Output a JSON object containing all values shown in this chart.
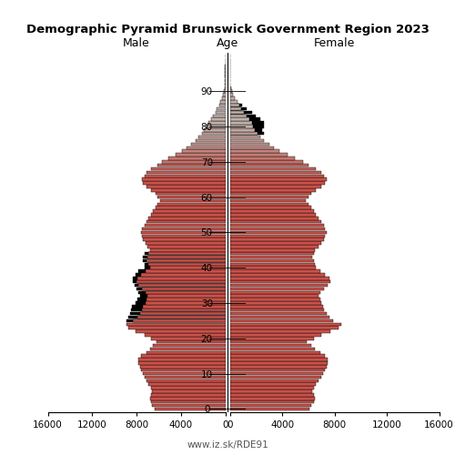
{
  "title": "Demographic Pyramid Brunswick Government Region 2023",
  "label_male": "Male",
  "label_female": "Female",
  "label_age": "Age",
  "footer": "www.iz.sk/RDE91",
  "xlim": 16000,
  "xticks": [
    0,
    4000,
    8000,
    12000,
    16000
  ],
  "ytick_positions": [
    0,
    10,
    20,
    30,
    40,
    50,
    60,
    70,
    80,
    90
  ],
  "bar_height": 0.9,
  "bar_lw": 0.3,
  "color_young": "#c8524a",
  "color_old": "#c0b0aa",
  "color_edge": "#000000",
  "transition_start": 65,
  "transition_end": 80,
  "male": [
    6400,
    6600,
    6700,
    6800,
    6700,
    6600,
    6700,
    6900,
    7100,
    7300,
    7400,
    7600,
    7700,
    7800,
    7800,
    7600,
    7100,
    6800,
    6500,
    6200,
    6700,
    7300,
    8100,
    8700,
    8900,
    8300,
    7900,
    7700,
    7500,
    7400,
    7200,
    7100,
    7000,
    7200,
    7500,
    7800,
    8000,
    7900,
    7600,
    7200,
    6800,
    6900,
    7100,
    7000,
    6900,
    6800,
    7000,
    7200,
    7400,
    7500,
    7600,
    7500,
    7300,
    7100,
    6900,
    6700,
    6500,
    6300,
    6100,
    5900,
    6100,
    6300,
    6700,
    7100,
    7400,
    7500,
    7300,
    7100,
    6700,
    6100,
    5700,
    5100,
    4500,
    3900,
    3500,
    3100,
    2700,
    2400,
    2100,
    1900,
    1700,
    1500,
    1300,
    1100,
    900,
    750,
    560,
    420,
    280,
    180,
    110,
    65,
    35,
    18,
    8,
    4,
    2,
    1,
    0,
    0,
    0
  ],
  "female": [
    6100,
    6200,
    6400,
    6500,
    6400,
    6300,
    6400,
    6600,
    6800,
    7000,
    7100,
    7300,
    7400,
    7500,
    7500,
    7300,
    6900,
    6500,
    6200,
    5900,
    6400,
    7000,
    7700,
    8300,
    8500,
    7900,
    7600,
    7400,
    7200,
    7100,
    7000,
    6900,
    6800,
    6900,
    7200,
    7500,
    7700,
    7600,
    7300,
    6900,
    6600,
    6500,
    6400,
    6300,
    6400,
    6500,
    6800,
    7000,
    7200,
    7300,
    7400,
    7300,
    7200,
    7000,
    6800,
    6600,
    6400,
    6200,
    6000,
    5800,
    6000,
    6200,
    6600,
    7000,
    7300,
    7400,
    7200,
    7000,
    6600,
    6000,
    5600,
    5000,
    4400,
    3800,
    3400,
    3000,
    2600,
    2300,
    2100,
    1900,
    1800,
    1700,
    1500,
    1300,
    1100,
    900,
    720,
    560,
    400,
    260,
    170,
    100,
    55,
    28,
    14,
    7,
    3,
    1,
    0,
    0,
    0
  ],
  "male_black_ages": [
    25,
    26,
    27,
    28,
    29,
    30,
    31,
    32,
    33,
    34,
    35,
    36,
    37,
    38,
    39,
    40,
    41,
    42,
    43,
    44
  ],
  "male_black_extra": [
    600,
    800,
    900,
    1000,
    1000,
    900,
    800,
    700,
    600,
    500,
    400,
    300,
    400,
    500,
    600,
    500,
    400,
    350,
    450,
    400
  ],
  "female_black_ages": [
    78,
    79,
    80,
    81,
    82,
    83,
    84,
    85,
    86
  ],
  "female_black_extra": [
    500,
    600,
    800,
    900,
    800,
    700,
    600,
    400,
    200
  ]
}
